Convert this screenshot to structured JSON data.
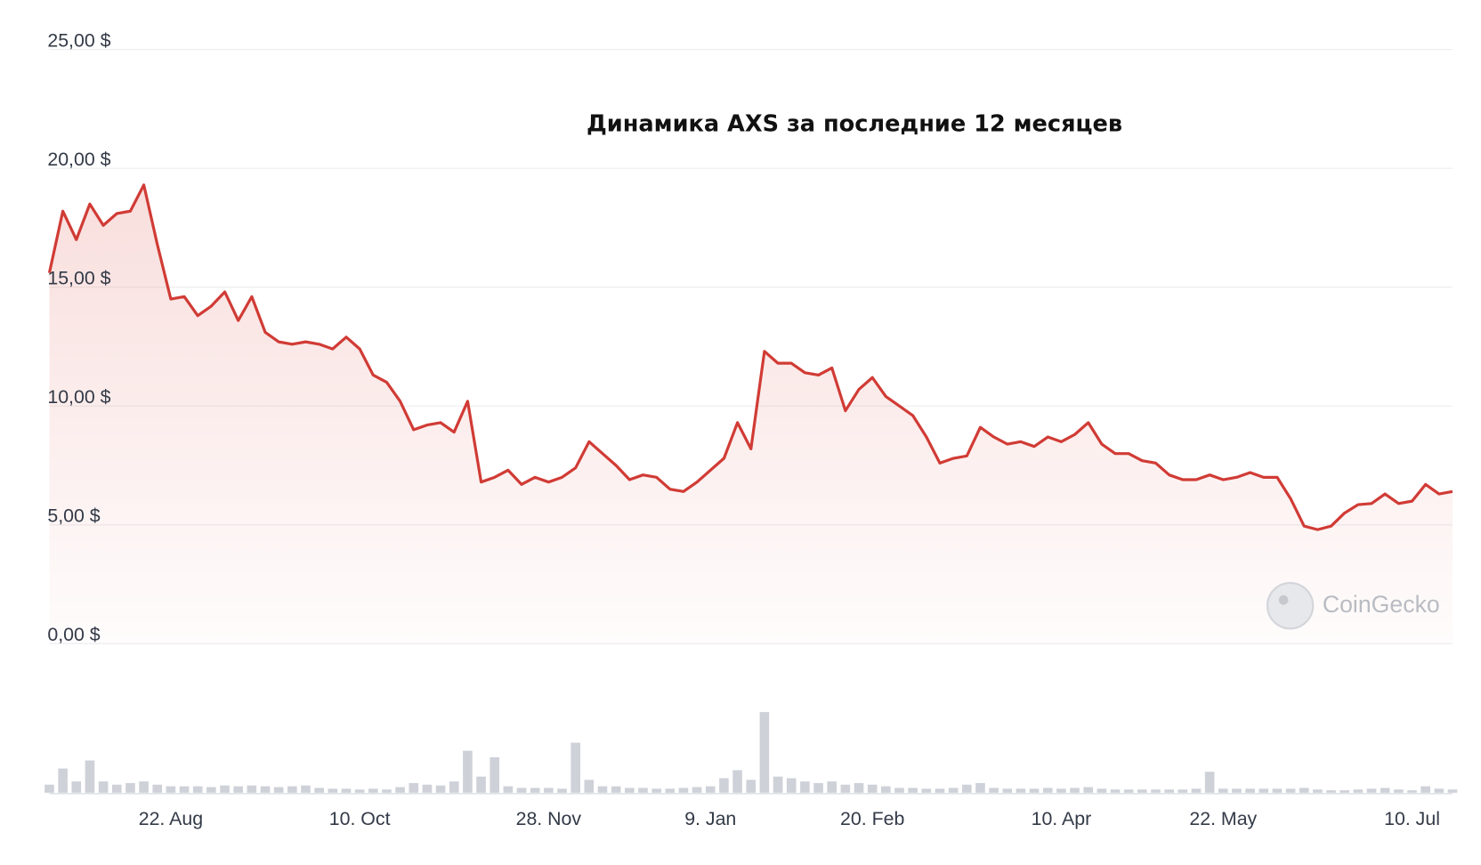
{
  "chart_data": {
    "type": "line",
    "title": "Динамика AXS за последние 12 месяцев",
    "watermark": "CoinGecko",
    "categories": [
      null,
      null,
      null,
      null,
      null,
      null,
      null,
      null,
      null,
      "22. Aug",
      null,
      null,
      null,
      null,
      null,
      null,
      null,
      null,
      null,
      null,
      null,
      null,
      null,
      "10. Oct",
      null,
      null,
      null,
      null,
      null,
      null,
      null,
      null,
      null,
      null,
      null,
      null,
      null,
      "28. Nov",
      null,
      null,
      null,
      null,
      null,
      null,
      null,
      null,
      null,
      null,
      null,
      "9. Jan",
      null,
      null,
      null,
      null,
      null,
      null,
      null,
      null,
      null,
      null,
      null,
      "20. Feb",
      null,
      null,
      null,
      null,
      null,
      null,
      null,
      null,
      null,
      null,
      null,
      null,
      null,
      "10. Apr",
      null,
      null,
      null,
      null,
      null,
      null,
      null,
      null,
      null,
      null,
      null,
      "22. May",
      null,
      null,
      null,
      null,
      null,
      null,
      null,
      null,
      null,
      null,
      null,
      null,
      null,
      "10. Jul",
      null,
      null,
      null
    ],
    "series": [
      {
        "color": "#d13b35",
        "values": [
          15.6,
          18.2,
          17.0,
          18.5,
          17.6,
          18.1,
          18.2,
          19.3,
          16.8,
          14.5,
          14.6,
          13.8,
          14.2,
          14.8,
          13.6,
          14.6,
          13.1,
          12.7,
          12.6,
          12.7,
          12.6,
          12.4,
          12.9,
          12.4,
          11.3,
          11.0,
          10.2,
          9.0,
          9.2,
          9.3,
          8.9,
          10.2,
          6.8,
          7.0,
          7.3,
          6.7,
          7.0,
          6.8,
          7.0,
          7.4,
          8.5,
          8.0,
          7.5,
          6.9,
          7.1,
          7.0,
          6.5,
          6.4,
          6.8,
          7.3,
          7.8,
          9.3,
          8.2,
          12.3,
          11.8,
          11.8,
          11.4,
          11.3,
          11.6,
          9.8,
          10.7,
          11.2,
          10.4,
          10.0,
          9.6,
          8.7,
          7.6,
          7.8,
          7.9,
          9.1,
          8.7,
          8.4,
          8.5,
          8.3,
          8.7,
          8.5,
          8.8,
          9.3,
          8.4,
          8.0,
          8.0,
          7.7,
          7.6,
          7.1,
          6.9,
          6.9,
          7.1,
          6.9,
          7.0,
          7.2,
          7.0,
          7.0,
          6.1,
          4.95,
          4.8,
          4.95,
          5.5,
          5.85,
          5.9,
          6.3,
          5.9,
          6.0,
          6.7,
          6.3,
          6.4
        ]
      }
    ],
    "ylim": [
      0,
      25
    ],
    "yticks": [
      {
        "value": 0,
        "label": "0,00 $"
      },
      {
        "value": 5,
        "label": "5,00 $"
      },
      {
        "value": 10,
        "label": "10,00 $"
      },
      {
        "value": 15,
        "label": "15,00 $"
      },
      {
        "value": 20,
        "label": "20,00 $"
      },
      {
        "value": 25,
        "label": "25,00 $"
      }
    ],
    "grid": true,
    "area": true,
    "volume": {
      "color": "#ced1d8",
      "ylim": [
        0,
        100
      ],
      "values": [
        10,
        30,
        14,
        40,
        14,
        10,
        12,
        14,
        10,
        8,
        8,
        8,
        7,
        9,
        8,
        9,
        8,
        7,
        8,
        9,
        6,
        5,
        5,
        4,
        5,
        4,
        7,
        12,
        10,
        9,
        14,
        52,
        20,
        44,
        8,
        6,
        6,
        6,
        5,
        62,
        16,
        8,
        8,
        6,
        6,
        5,
        5,
        6,
        7,
        8,
        18,
        28,
        16,
        100,
        20,
        18,
        14,
        12,
        14,
        10,
        12,
        10,
        8,
        6,
        6,
        5,
        5,
        6,
        10,
        12,
        6,
        5,
        5,
        5,
        6,
        5,
        6,
        7,
        5,
        4,
        4,
        4,
        4,
        4,
        4,
        5,
        26,
        5,
        5,
        5,
        5,
        5,
        5,
        6,
        4,
        3,
        3,
        4,
        5,
        6,
        4,
        3,
        8,
        5,
        4
      ]
    }
  }
}
